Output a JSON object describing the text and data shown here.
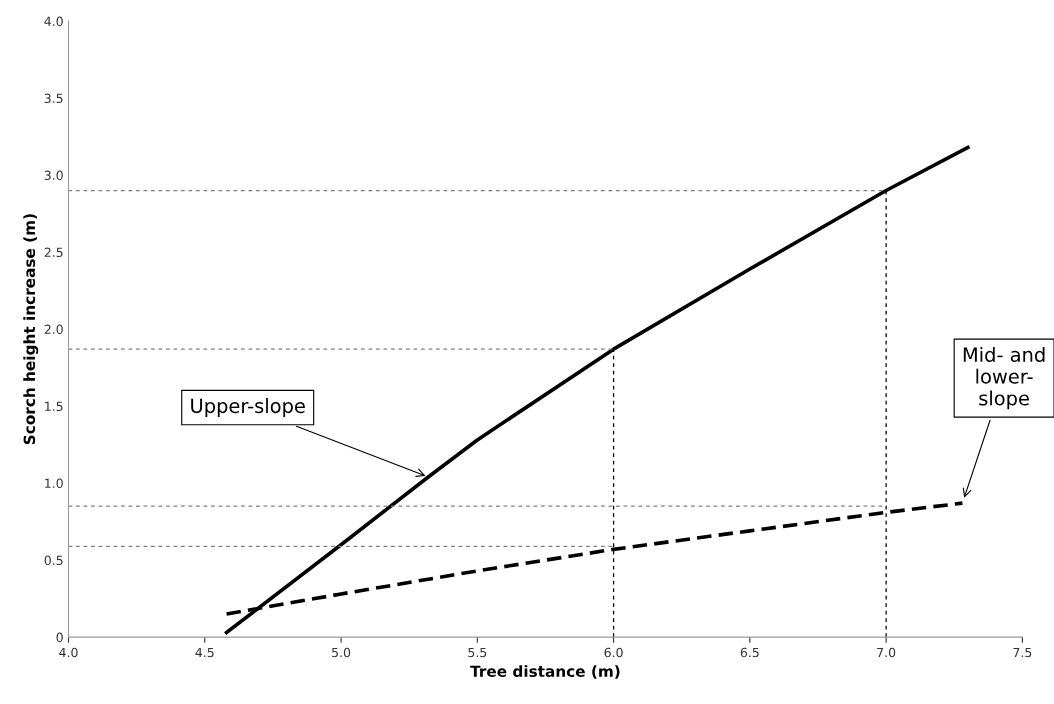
{
  "chart_data": {
    "type": "line",
    "xlabel": "Tree distance (m)",
    "ylabel": "Scorch height increase (m)",
    "xlim": [
      4.0,
      7.5
    ],
    "xticks": [
      {
        "value": 4,
        "label": "4.0"
      },
      4.5,
      {
        "value": 5,
        "label": "5.0"
      },
      5.5,
      {
        "value": 6,
        "label": "6.0"
      },
      6.5,
      {
        "value": 7,
        "label": "7.0"
      },
      7.5
    ],
    "ylim": [
      0,
      4.0
    ],
    "yticks": [
      0,
      0.5,
      {
        "value": 1,
        "label": "1.0"
      },
      1.5,
      {
        "value": 2,
        "label": "2.0"
      },
      2.5,
      {
        "value": 3,
        "label": "3.0"
      },
      3.5,
      {
        "value": 4,
        "label": "4.0"
      }
    ],
    "grid": false,
    "legend": false,
    "marker": "none",
    "series": [
      {
        "color": "#000000",
        "line_style": "solid",
        "x": [
          4.58,
          5.0,
          5.32,
          5.5,
          6.0,
          6.5,
          7.0,
          7.3
        ],
        "values": [
          0.03,
          0.6,
          1.04,
          1.28,
          1.87,
          2.39,
          2.9,
          3.18
        ]
      },
      {
        "color": "#000000",
        "line_style": "dashed",
        "x": [
          4.58,
          5.0,
          5.5,
          6.0,
          6.5,
          7.0,
          7.28
        ],
        "values": [
          0.15,
          0.28,
          0.43,
          0.57,
          0.69,
          0.81,
          0.87
        ]
      },
      {
        "color": "#808080",
        "line_style": "dotted",
        "x": [
          4.0,
          7.0
        ],
        "values": [
          2.9,
          2.9
        ]
      },
      {
        "color": "#808080",
        "line_style": "dotted",
        "x": [
          4.0,
          6.0
        ],
        "values": [
          1.87,
          1.87
        ]
      },
      {
        "color": "#808080",
        "line_style": "dotted",
        "x": [
          4.0,
          7.0
        ],
        "values": [
          0.85,
          0.85
        ]
      },
      {
        "color": "#808080",
        "line_style": "dotted",
        "x": [
          4.0,
          6.0
        ],
        "values": [
          0.59,
          0.59
        ]
      },
      {
        "color": "#000000",
        "line_style": "dotted",
        "x": [
          6.0,
          6.0
        ],
        "values": [
          0,
          1.87
        ]
      },
      {
        "color": "#000000",
        "line_style": "dotted",
        "x": [
          7.0,
          7.0
        ],
        "values": [
          0,
          2.9
        ]
      }
    ],
    "annotations": [
      {
        "text": "Upper-slope",
        "x": 5.32,
        "y": 1.04
      },
      {
        "text": "Mid- and\nlower-\nslope",
        "x": 7.28,
        "y": 0.87
      }
    ]
  }
}
